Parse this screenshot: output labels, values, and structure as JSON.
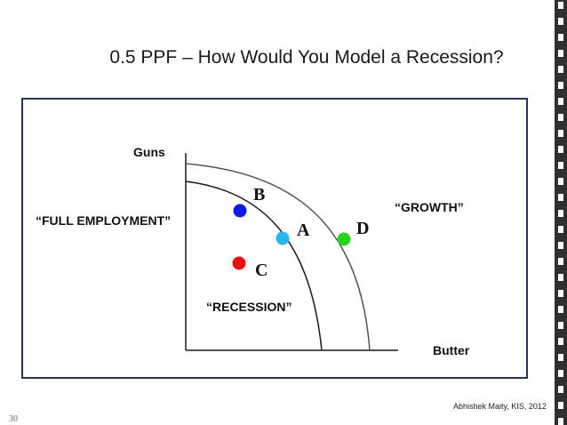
{
  "slide": {
    "title": "0.5 PPF – How Would You Model a Recession?",
    "credit": "Abhishek Maity, KIS, 2012",
    "slide_number": "30"
  },
  "diagram": {
    "y_axis_label": "Guns",
    "x_axis_label": "Butter",
    "labels": {
      "full_employment": "“FULL EMPLOYMENT”",
      "growth": "“GROWTH”",
      "recession": "“RECESSION”"
    },
    "points": [
      {
        "id": "B",
        "label": "B",
        "color": "#0a1ae8"
      },
      {
        "id": "A",
        "label": "A",
        "color": "#29b6f0"
      },
      {
        "id": "D",
        "label": "D",
        "color": "#2bd21f"
      },
      {
        "id": "C",
        "label": "C",
        "color": "#ee1111"
      }
    ],
    "colors": {
      "frame": "#27355a",
      "curve": "#1a1a1a",
      "shifted_curve": "#555555"
    }
  }
}
